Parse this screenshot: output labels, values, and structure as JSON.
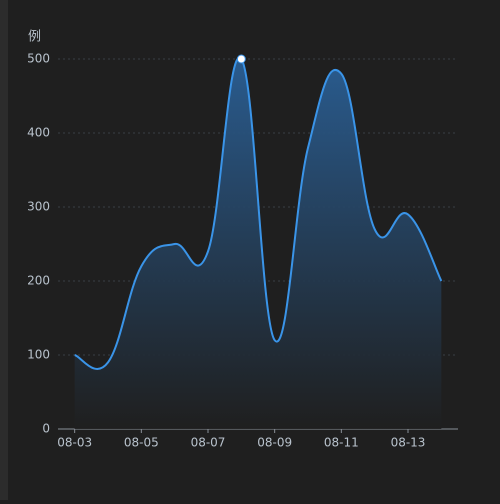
{
  "chart_data": {
    "type": "line",
    "y_axis_label": "例",
    "categories": [
      "08-03",
      null,
      "08-05",
      null,
      "08-07",
      null,
      "08-09",
      null,
      "08-11",
      null,
      "08-13",
      null
    ],
    "series": [
      {
        "color": "#3a94e8",
        "values": [
          100,
          90,
          220,
          250,
          240,
          500,
          120,
          380,
          480,
          270,
          290,
          200
        ]
      }
    ],
    "ylim": [
      0,
      500
    ],
    "yticks": [
      0,
      100,
      200,
      300,
      400,
      500
    ],
    "grid": true,
    "smooth": true,
    "area": true,
    "max_marker": true
  }
}
